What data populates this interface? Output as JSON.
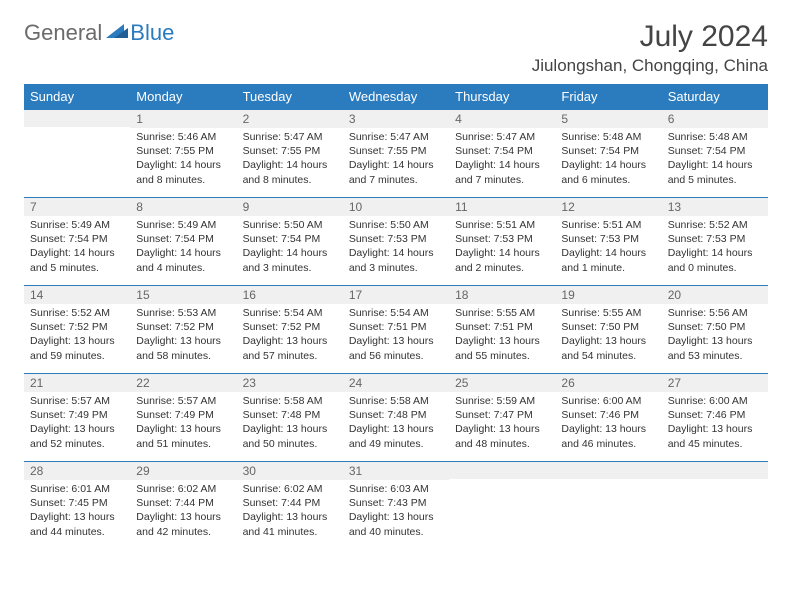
{
  "logo": {
    "part1": "General",
    "part2": "Blue"
  },
  "title": "July 2024",
  "location": "Jiulongshan, Chongqing, China",
  "colors": {
    "header_bg": "#2b7bbf",
    "header_text": "#ffffff",
    "daynum_bg": "#f0f0f0",
    "border": "#2b7bbf",
    "logo_gray": "#6b6b6b",
    "logo_blue": "#2b7bbf"
  },
  "day_names": [
    "Sunday",
    "Monday",
    "Tuesday",
    "Wednesday",
    "Thursday",
    "Friday",
    "Saturday"
  ],
  "weeks": [
    [
      {
        "n": "",
        "sunrise": "",
        "sunset": "",
        "daylight": ""
      },
      {
        "n": "1",
        "sunrise": "Sunrise: 5:46 AM",
        "sunset": "Sunset: 7:55 PM",
        "daylight": "Daylight: 14 hours and 8 minutes."
      },
      {
        "n": "2",
        "sunrise": "Sunrise: 5:47 AM",
        "sunset": "Sunset: 7:55 PM",
        "daylight": "Daylight: 14 hours and 8 minutes."
      },
      {
        "n": "3",
        "sunrise": "Sunrise: 5:47 AM",
        "sunset": "Sunset: 7:55 PM",
        "daylight": "Daylight: 14 hours and 7 minutes."
      },
      {
        "n": "4",
        "sunrise": "Sunrise: 5:47 AM",
        "sunset": "Sunset: 7:54 PM",
        "daylight": "Daylight: 14 hours and 7 minutes."
      },
      {
        "n": "5",
        "sunrise": "Sunrise: 5:48 AM",
        "sunset": "Sunset: 7:54 PM",
        "daylight": "Daylight: 14 hours and 6 minutes."
      },
      {
        "n": "6",
        "sunrise": "Sunrise: 5:48 AM",
        "sunset": "Sunset: 7:54 PM",
        "daylight": "Daylight: 14 hours and 5 minutes."
      }
    ],
    [
      {
        "n": "7",
        "sunrise": "Sunrise: 5:49 AM",
        "sunset": "Sunset: 7:54 PM",
        "daylight": "Daylight: 14 hours and 5 minutes."
      },
      {
        "n": "8",
        "sunrise": "Sunrise: 5:49 AM",
        "sunset": "Sunset: 7:54 PM",
        "daylight": "Daylight: 14 hours and 4 minutes."
      },
      {
        "n": "9",
        "sunrise": "Sunrise: 5:50 AM",
        "sunset": "Sunset: 7:54 PM",
        "daylight": "Daylight: 14 hours and 3 minutes."
      },
      {
        "n": "10",
        "sunrise": "Sunrise: 5:50 AM",
        "sunset": "Sunset: 7:53 PM",
        "daylight": "Daylight: 14 hours and 3 minutes."
      },
      {
        "n": "11",
        "sunrise": "Sunrise: 5:51 AM",
        "sunset": "Sunset: 7:53 PM",
        "daylight": "Daylight: 14 hours and 2 minutes."
      },
      {
        "n": "12",
        "sunrise": "Sunrise: 5:51 AM",
        "sunset": "Sunset: 7:53 PM",
        "daylight": "Daylight: 14 hours and 1 minute."
      },
      {
        "n": "13",
        "sunrise": "Sunrise: 5:52 AM",
        "sunset": "Sunset: 7:53 PM",
        "daylight": "Daylight: 14 hours and 0 minutes."
      }
    ],
    [
      {
        "n": "14",
        "sunrise": "Sunrise: 5:52 AM",
        "sunset": "Sunset: 7:52 PM",
        "daylight": "Daylight: 13 hours and 59 minutes."
      },
      {
        "n": "15",
        "sunrise": "Sunrise: 5:53 AM",
        "sunset": "Sunset: 7:52 PM",
        "daylight": "Daylight: 13 hours and 58 minutes."
      },
      {
        "n": "16",
        "sunrise": "Sunrise: 5:54 AM",
        "sunset": "Sunset: 7:52 PM",
        "daylight": "Daylight: 13 hours and 57 minutes."
      },
      {
        "n": "17",
        "sunrise": "Sunrise: 5:54 AM",
        "sunset": "Sunset: 7:51 PM",
        "daylight": "Daylight: 13 hours and 56 minutes."
      },
      {
        "n": "18",
        "sunrise": "Sunrise: 5:55 AM",
        "sunset": "Sunset: 7:51 PM",
        "daylight": "Daylight: 13 hours and 55 minutes."
      },
      {
        "n": "19",
        "sunrise": "Sunrise: 5:55 AM",
        "sunset": "Sunset: 7:50 PM",
        "daylight": "Daylight: 13 hours and 54 minutes."
      },
      {
        "n": "20",
        "sunrise": "Sunrise: 5:56 AM",
        "sunset": "Sunset: 7:50 PM",
        "daylight": "Daylight: 13 hours and 53 minutes."
      }
    ],
    [
      {
        "n": "21",
        "sunrise": "Sunrise: 5:57 AM",
        "sunset": "Sunset: 7:49 PM",
        "daylight": "Daylight: 13 hours and 52 minutes."
      },
      {
        "n": "22",
        "sunrise": "Sunrise: 5:57 AM",
        "sunset": "Sunset: 7:49 PM",
        "daylight": "Daylight: 13 hours and 51 minutes."
      },
      {
        "n": "23",
        "sunrise": "Sunrise: 5:58 AM",
        "sunset": "Sunset: 7:48 PM",
        "daylight": "Daylight: 13 hours and 50 minutes."
      },
      {
        "n": "24",
        "sunrise": "Sunrise: 5:58 AM",
        "sunset": "Sunset: 7:48 PM",
        "daylight": "Daylight: 13 hours and 49 minutes."
      },
      {
        "n": "25",
        "sunrise": "Sunrise: 5:59 AM",
        "sunset": "Sunset: 7:47 PM",
        "daylight": "Daylight: 13 hours and 48 minutes."
      },
      {
        "n": "26",
        "sunrise": "Sunrise: 6:00 AM",
        "sunset": "Sunset: 7:46 PM",
        "daylight": "Daylight: 13 hours and 46 minutes."
      },
      {
        "n": "27",
        "sunrise": "Sunrise: 6:00 AM",
        "sunset": "Sunset: 7:46 PM",
        "daylight": "Daylight: 13 hours and 45 minutes."
      }
    ],
    [
      {
        "n": "28",
        "sunrise": "Sunrise: 6:01 AM",
        "sunset": "Sunset: 7:45 PM",
        "daylight": "Daylight: 13 hours and 44 minutes."
      },
      {
        "n": "29",
        "sunrise": "Sunrise: 6:02 AM",
        "sunset": "Sunset: 7:44 PM",
        "daylight": "Daylight: 13 hours and 42 minutes."
      },
      {
        "n": "30",
        "sunrise": "Sunrise: 6:02 AM",
        "sunset": "Sunset: 7:44 PM",
        "daylight": "Daylight: 13 hours and 41 minutes."
      },
      {
        "n": "31",
        "sunrise": "Sunrise: 6:03 AM",
        "sunset": "Sunset: 7:43 PM",
        "daylight": "Daylight: 13 hours and 40 minutes."
      },
      {
        "n": "",
        "sunrise": "",
        "sunset": "",
        "daylight": ""
      },
      {
        "n": "",
        "sunrise": "",
        "sunset": "",
        "daylight": ""
      },
      {
        "n": "",
        "sunrise": "",
        "sunset": "",
        "daylight": ""
      }
    ]
  ]
}
